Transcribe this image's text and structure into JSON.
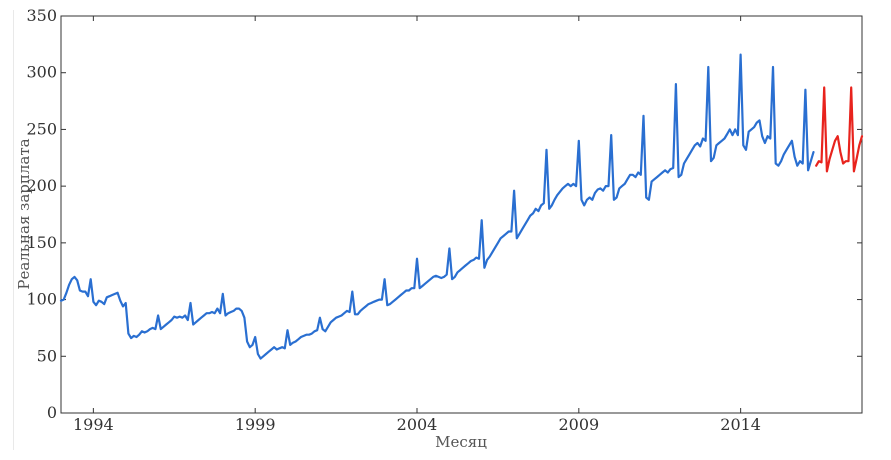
{
  "chart_data": {
    "type": "line",
    "title": "",
    "xlabel": "Месяц",
    "ylabel": "Реальная зарплата",
    "xlim": [
      "1993-01",
      "2017-10"
    ],
    "ylim": [
      0,
      350
    ],
    "grid": false,
    "legend": "none",
    "x_tick_labels": [
      "1994",
      "1999",
      "2004",
      "2009",
      "2014"
    ],
    "y_tick_labels": [
      "0",
      "50",
      "100",
      "150",
      "200",
      "250",
      "300",
      "350"
    ],
    "series": [
      {
        "color": "#2a6fd1",
        "x": [
          "1993-01",
          "1993-02",
          "1993-03",
          "1993-04",
          "1993-05",
          "1993-06",
          "1993-07",
          "1993-08",
          "1993-09",
          "1993-10",
          "1993-11",
          "1993-12",
          "1994-01",
          "1994-02",
          "1994-03",
          "1994-04",
          "1994-05",
          "1994-06",
          "1994-07",
          "1994-08",
          "1994-09",
          "1994-10",
          "1994-11",
          "1994-12",
          "1995-01",
          "1995-02",
          "1995-03",
          "1995-04",
          "1995-05",
          "1995-06",
          "1995-07",
          "1995-08",
          "1995-09",
          "1995-10",
          "1995-11",
          "1995-12",
          "1996-01",
          "1996-02",
          "1996-03",
          "1996-04",
          "1996-05",
          "1996-06",
          "1996-07",
          "1996-08",
          "1996-09",
          "1996-10",
          "1996-11",
          "1996-12",
          "1997-01",
          "1997-02",
          "1997-03",
          "1997-04",
          "1997-05",
          "1997-06",
          "1997-07",
          "1997-08",
          "1997-09",
          "1997-10",
          "1997-11",
          "1997-12",
          "1998-01",
          "1998-02",
          "1998-03",
          "1998-04",
          "1998-05",
          "1998-06",
          "1998-07",
          "1998-08",
          "1998-09",
          "1998-10",
          "1998-11",
          "1998-12",
          "1999-01",
          "1999-02",
          "1999-03",
          "1999-04",
          "1999-05",
          "1999-06",
          "1999-07",
          "1999-08",
          "1999-09",
          "1999-10",
          "1999-11",
          "1999-12",
          "2000-01",
          "2000-02",
          "2000-03",
          "2000-04",
          "2000-05",
          "2000-06",
          "2000-07",
          "2000-08",
          "2000-09",
          "2000-10",
          "2000-11",
          "2000-12",
          "2001-01",
          "2001-02",
          "2001-03",
          "2001-04",
          "2001-05",
          "2001-06",
          "2001-07",
          "2001-08",
          "2001-09",
          "2001-10",
          "2001-11",
          "2001-12",
          "2002-01",
          "2002-02",
          "2002-03",
          "2002-04",
          "2002-05",
          "2002-06",
          "2002-07",
          "2002-08",
          "2002-09",
          "2002-10",
          "2002-11",
          "2002-12",
          "2003-01",
          "2003-02",
          "2003-03",
          "2003-04",
          "2003-05",
          "2003-06",
          "2003-07",
          "2003-08",
          "2003-09",
          "2003-10",
          "2003-11",
          "2003-12",
          "2004-01",
          "2004-02",
          "2004-03",
          "2004-04",
          "2004-05",
          "2004-06",
          "2004-07",
          "2004-08",
          "2004-09",
          "2004-10",
          "2004-11",
          "2004-12",
          "2005-01",
          "2005-02",
          "2005-03",
          "2005-04",
          "2005-05",
          "2005-06",
          "2005-07",
          "2005-08",
          "2005-09",
          "2005-10",
          "2005-11",
          "2005-12",
          "2006-01",
          "2006-02",
          "2006-03",
          "2006-04",
          "2006-05",
          "2006-06",
          "2006-07",
          "2006-08",
          "2006-09",
          "2006-10",
          "2006-11",
          "2006-12",
          "2007-01",
          "2007-02",
          "2007-03",
          "2007-04",
          "2007-05",
          "2007-06",
          "2007-07",
          "2007-08",
          "2007-09",
          "2007-10",
          "2007-11",
          "2007-12",
          "2008-01",
          "2008-02",
          "2008-03",
          "2008-04",
          "2008-05",
          "2008-06",
          "2008-07",
          "2008-08",
          "2008-09",
          "2008-10",
          "2008-11",
          "2008-12",
          "2009-01",
          "2009-02",
          "2009-03",
          "2009-04",
          "2009-05",
          "2009-06",
          "2009-07",
          "2009-08",
          "2009-09",
          "2009-10",
          "2009-11",
          "2009-12",
          "2010-01",
          "2010-02",
          "2010-03",
          "2010-04",
          "2010-05",
          "2010-06",
          "2010-07",
          "2010-08",
          "2010-09",
          "2010-10",
          "2010-11",
          "2010-12",
          "2011-01",
          "2011-02",
          "2011-03",
          "2011-04",
          "2011-05",
          "2011-06",
          "2011-07",
          "2011-08",
          "2011-09",
          "2011-10",
          "2011-11",
          "2011-12",
          "2012-01",
          "2012-02",
          "2012-03",
          "2012-04",
          "2012-05",
          "2012-06",
          "2012-07",
          "2012-08",
          "2012-09",
          "2012-10",
          "2012-11",
          "2012-12",
          "2013-01",
          "2013-02",
          "2013-03",
          "2013-04",
          "2013-05",
          "2013-06",
          "2013-07",
          "2013-08",
          "2013-09",
          "2013-10",
          "2013-11",
          "2013-12",
          "2014-01",
          "2014-02",
          "2014-03",
          "2014-04",
          "2014-05",
          "2014-06",
          "2014-07",
          "2014-08",
          "2014-09",
          "2014-10",
          "2014-11",
          "2014-12",
          "2015-01",
          "2015-02",
          "2015-03",
          "2015-04",
          "2015-05",
          "2015-06",
          "2015-07",
          "2015-08",
          "2015-09",
          "2015-10",
          "2015-11",
          "2015-12",
          "2016-01",
          "2016-02",
          "2016-03",
          "2016-04"
        ],
        "values": [
          99,
          100,
          106,
          113,
          118,
          120,
          117,
          108,
          107,
          107,
          103,
          118,
          98,
          95,
          99,
          98,
          96,
          102,
          103,
          104,
          105,
          106,
          99,
          94,
          97,
          70,
          66,
          68,
          67,
          69,
          72,
          71,
          72,
          74,
          75,
          74,
          86,
          74,
          76,
          78,
          80,
          82,
          85,
          84,
          85,
          84,
          86,
          82,
          97,
          78,
          80,
          82,
          84,
          86,
          88,
          88,
          89,
          88,
          92,
          88,
          105,
          86,
          88,
          89,
          90,
          92,
          92,
          90,
          84,
          63,
          58,
          60,
          67,
          52,
          48,
          50,
          52,
          54,
          56,
          58,
          56,
          57,
          58,
          57,
          73,
          60,
          62,
          63,
          65,
          67,
          68,
          69,
          69,
          70,
          72,
          73,
          84,
          74,
          72,
          76,
          80,
          82,
          84,
          85,
          86,
          88,
          90,
          89,
          107,
          87,
          87,
          90,
          92,
          94,
          96,
          97,
          98,
          99,
          100,
          100,
          118,
          95,
          96,
          98,
          100,
          102,
          104,
          106,
          108,
          108,
          110,
          110,
          136,
          110,
          112,
          114,
          116,
          118,
          120,
          121,
          120,
          119,
          120,
          122,
          145,
          118,
          120,
          124,
          126,
          128,
          130,
          132,
          134,
          135,
          137,
          136,
          170,
          128,
          135,
          138,
          142,
          146,
          150,
          154,
          156,
          158,
          160,
          160,
          196,
          154,
          158,
          162,
          166,
          170,
          174,
          176,
          180,
          178,
          183,
          185,
          232,
          180,
          183,
          188,
          192,
          195,
          198,
          200,
          202,
          200,
          202,
          200,
          240,
          188,
          183,
          188,
          190,
          188,
          194,
          197,
          198,
          196,
          200,
          200,
          245,
          188,
          190,
          198,
          200,
          202,
          206,
          210,
          210,
          208,
          212,
          210,
          262,
          190,
          188,
          204,
          206,
          208,
          210,
          212,
          214,
          212,
          215,
          216,
          290,
          208,
          210,
          220,
          224,
          228,
          232,
          236,
          238,
          235,
          242,
          240,
          305,
          222,
          225,
          236,
          238,
          240,
          242,
          246,
          250,
          245,
          250,
          245,
          316,
          236,
          232,
          248,
          250,
          252,
          256,
          258,
          244,
          238,
          244,
          242,
          305,
          220,
          218,
          222,
          228,
          232,
          236,
          240,
          226,
          218,
          222,
          220,
          285,
          214,
          222,
          230
        ]
      },
      {
        "color": "#e8231d",
        "x": [
          "2016-05",
          "2016-06",
          "2016-07",
          "2016-08",
          "2016-09",
          "2016-10",
          "2016-11",
          "2016-12",
          "2017-01",
          "2017-02",
          "2017-03",
          "2017-04",
          "2017-05",
          "2017-06",
          "2017-07",
          "2017-08",
          "2017-09",
          "2017-10"
        ],
        "values": [
          218,
          222,
          221,
          287,
          213,
          224,
          232,
          240,
          244,
          230,
          220,
          222,
          222,
          287,
          213,
          224,
          236,
          244
        ]
      }
    ]
  }
}
